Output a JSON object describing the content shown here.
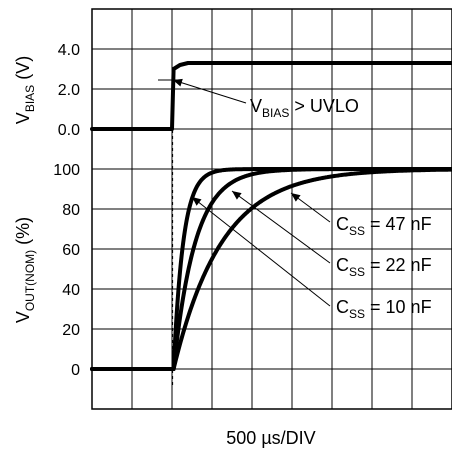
{
  "chart_data": {
    "type": "line",
    "xlabel": "500 µs/DIV",
    "x_divisions": 9,
    "x_unit": "µs",
    "x_per_div": 500,
    "panels": [
      {
        "id": "bias",
        "ylabel_main": "V",
        "ylabel_sub": "BIAS",
        "ylabel_unit": " (V)",
        "yticks": [
          "4.0",
          "2.0",
          "0.0"
        ],
        "ylim": [
          0,
          4
        ],
        "series": [
          {
            "name": "",
            "points": [
              [
                0,
                0
              ],
              [
                1000,
                0
              ],
              [
                1020,
                3.0
              ],
              [
                1100,
                3.2
              ],
              [
                1200,
                3.3
              ],
              [
                4500,
                3.3
              ]
            ]
          }
        ],
        "annotations": [
          {
            "main": "V",
            "sub": "BIAS",
            "rest": " > UVLO"
          }
        ]
      },
      {
        "id": "vout",
        "ylabel_main": "V",
        "ylabel_sub": "OUT(NOM)",
        "ylabel_unit": " (%)",
        "yticks": [
          "100",
          "80",
          "60",
          "40",
          "20",
          "0"
        ],
        "ylim": [
          -20,
          100
        ],
        "series": [
          {
            "name": "C_SS = 10 nF",
            "t0": 1020,
            "tau": 120,
            "end": 4500
          },
          {
            "name": "C_SS = 22 nF",
            "t0": 1020,
            "tau": 270,
            "end": 4500
          },
          {
            "name": "C_SS = 47 nF",
            "t0": 1020,
            "tau": 600,
            "end": 4500
          }
        ],
        "annotations": [
          {
            "main": "C",
            "sub": "SS",
            "rest": " = 47 nF"
          },
          {
            "main": "C",
            "sub": "SS",
            "rest": " = 22 nF"
          },
          {
            "main": "C",
            "sub": "SS",
            "rest": " = 10 nF"
          }
        ]
      }
    ],
    "enable_marker_us": 1020,
    "grid": true
  }
}
